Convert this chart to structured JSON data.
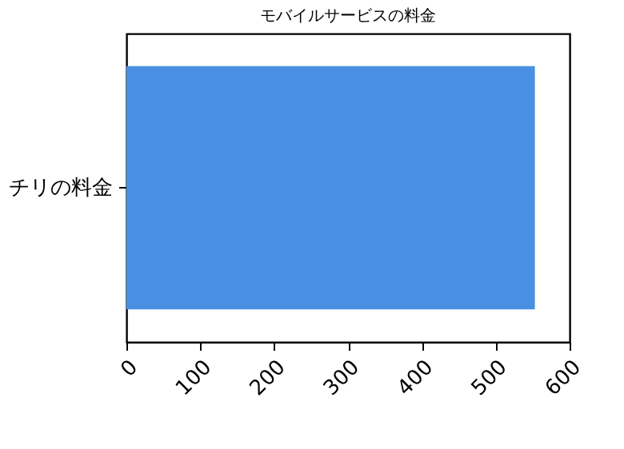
{
  "chart_data": {
    "type": "bar",
    "orientation": "horizontal",
    "title": "モバイルサービスの料金",
    "categories": [
      "チリの料金"
    ],
    "series": [
      {
        "color": "#4a90e2",
        "values": [
          553
        ]
      }
    ],
    "xlim": [
      0,
      600
    ],
    "xticks": [
      0,
      100,
      200,
      300,
      400,
      500,
      600
    ],
    "grid": false
  }
}
